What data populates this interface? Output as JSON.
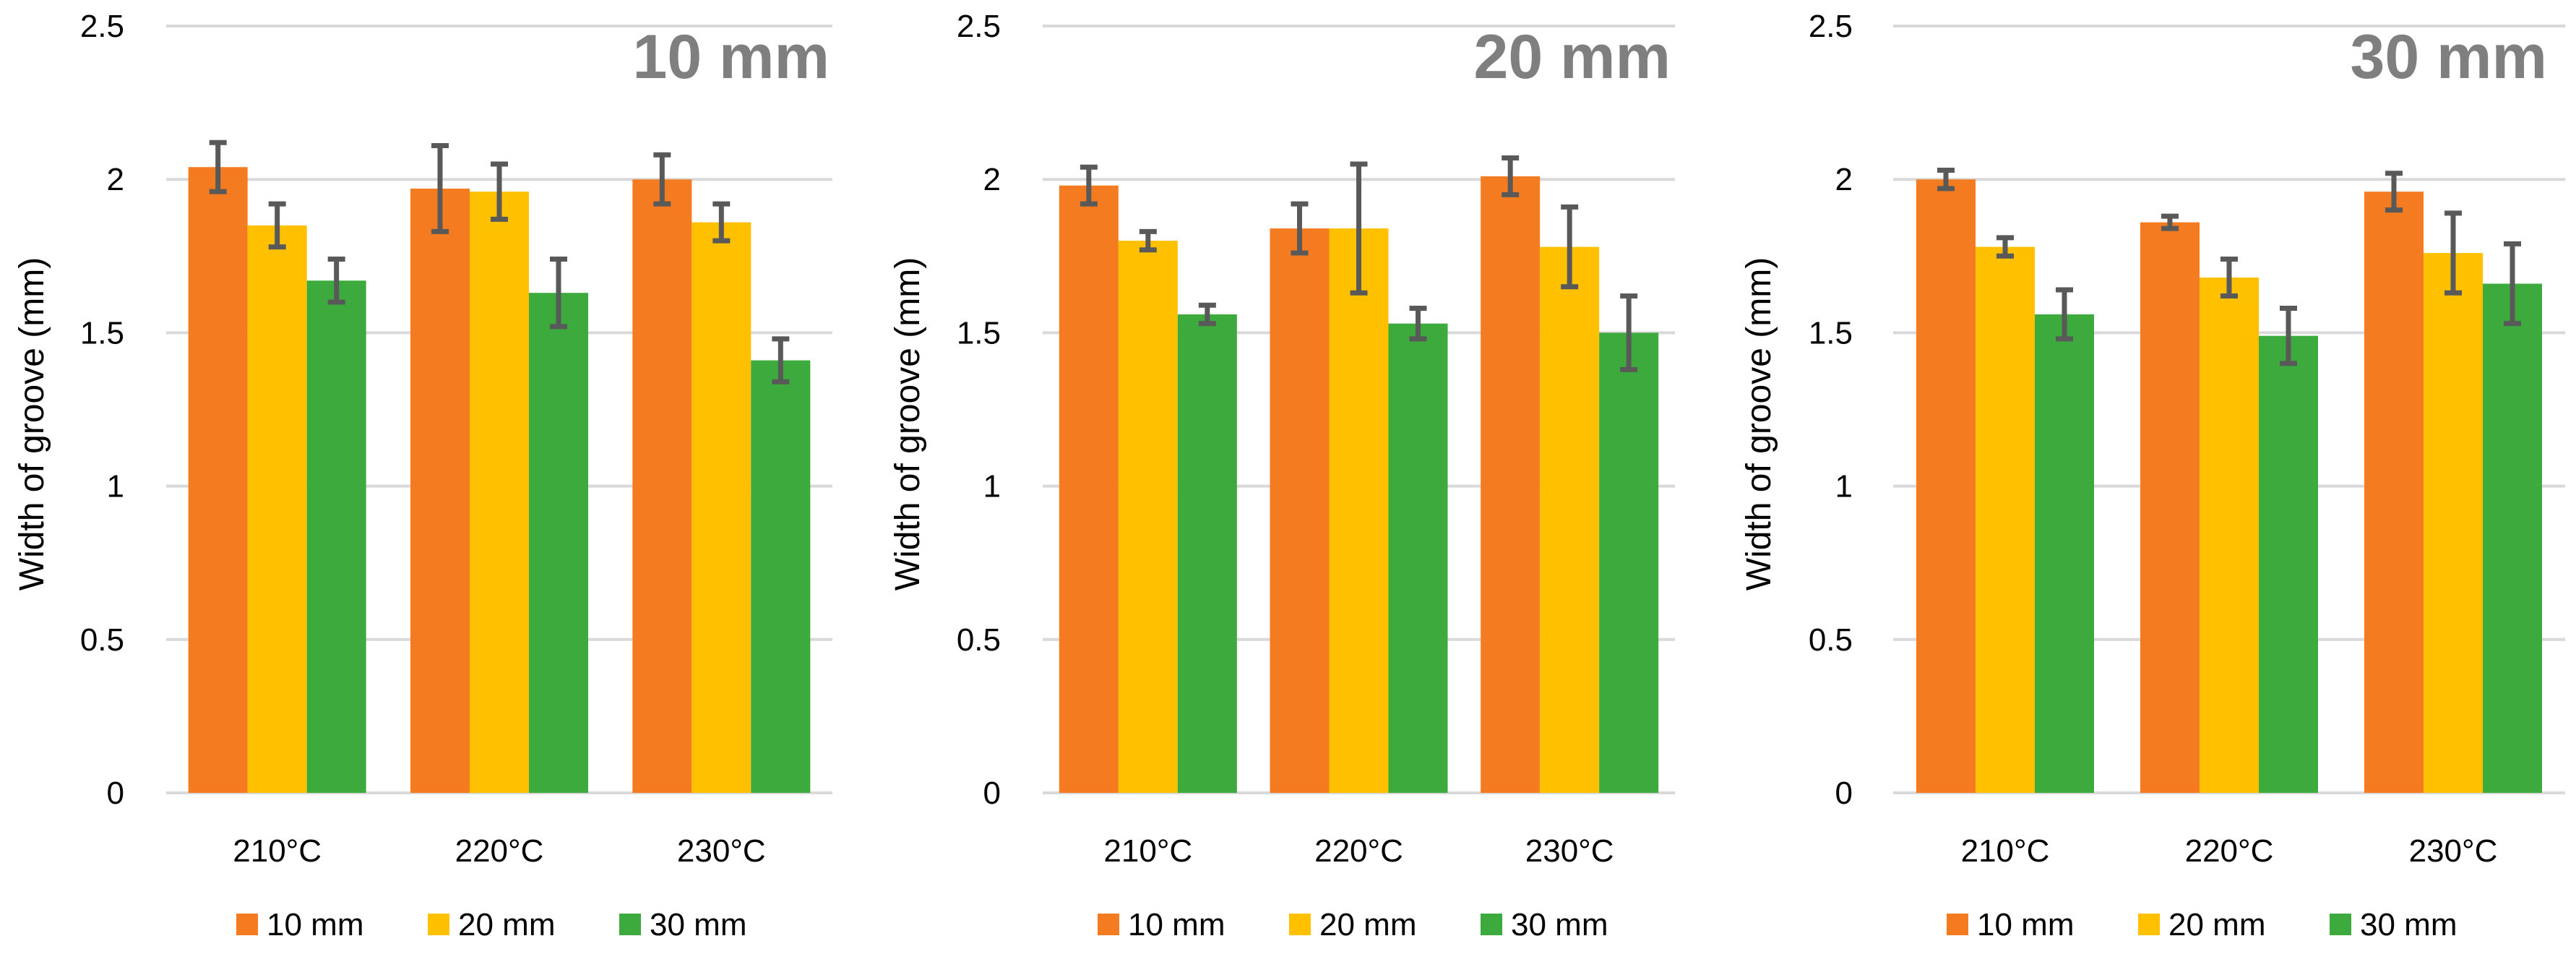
{
  "chart_data": [
    {
      "type": "bar",
      "title": "10 mm",
      "ylabel": "Width of groove (mm)",
      "xlabel": "",
      "ylim": [
        0,
        2.5
      ],
      "yticks": [
        "0",
        "0.5",
        "1",
        "1.5",
        "2",
        "2.5"
      ],
      "ytick_values": [
        0,
        0.5,
        1,
        1.5,
        2,
        2.5
      ],
      "categories": [
        "210°C",
        "220°C",
        "230°C"
      ],
      "series": [
        {
          "name": "10 mm",
          "color": "#F47B20",
          "values": [
            2.04,
            1.97,
            2.0
          ],
          "errors": [
            0.08,
            0.14,
            0.08
          ]
        },
        {
          "name": "20 mm",
          "color": "#FFC000",
          "values": [
            1.85,
            1.96,
            1.86
          ],
          "errors": [
            0.07,
            0.09,
            0.06
          ]
        },
        {
          "name": "30 mm",
          "color": "#3DAA3D",
          "values": [
            1.67,
            1.63,
            1.41
          ],
          "errors": [
            0.07,
            0.11,
            0.07
          ]
        }
      ],
      "legend_position": "bottom"
    },
    {
      "type": "bar",
      "title": "20 mm",
      "ylabel": "Width of groove (mm)",
      "xlabel": "",
      "ylim": [
        0,
        2.5
      ],
      "yticks": [
        "0",
        "0.5",
        "1",
        "1.5",
        "2",
        "2.5"
      ],
      "ytick_values": [
        0,
        0.5,
        1,
        1.5,
        2,
        2.5
      ],
      "categories": [
        "210°C",
        "220°C",
        "230°C"
      ],
      "series": [
        {
          "name": "10 mm",
          "color": "#F47B20",
          "values": [
            1.98,
            1.84,
            2.01
          ],
          "errors": [
            0.06,
            0.08,
            0.06
          ]
        },
        {
          "name": "20 mm",
          "color": "#FFC000",
          "values": [
            1.8,
            1.84,
            1.78
          ],
          "errors": [
            0.03,
            0.21,
            0.13
          ]
        },
        {
          "name": "30 mm",
          "color": "#3DAA3D",
          "values": [
            1.56,
            1.53,
            1.5
          ],
          "errors": [
            0.03,
            0.05,
            0.12
          ]
        }
      ],
      "legend_position": "bottom"
    },
    {
      "type": "bar",
      "title": "30 mm",
      "ylabel": "Width of groove (mm)",
      "xlabel": "",
      "ylim": [
        0,
        2.5
      ],
      "yticks": [
        "0",
        "0.5",
        "1",
        "1.5",
        "2",
        "2.5"
      ],
      "ytick_values": [
        0,
        0.5,
        1,
        1.5,
        2,
        2.5
      ],
      "categories": [
        "210°C",
        "220°C",
        "230°C"
      ],
      "series": [
        {
          "name": "10 mm",
          "color": "#F47B20",
          "values": [
            2.0,
            1.86,
            1.96
          ],
          "errors": [
            0.03,
            0.02,
            0.06
          ]
        },
        {
          "name": "20 mm",
          "color": "#FFC000",
          "values": [
            1.78,
            1.68,
            1.76
          ],
          "errors": [
            0.03,
            0.06,
            0.13
          ]
        },
        {
          "name": "30 mm",
          "color": "#3DAA3D",
          "values": [
            1.56,
            1.49,
            1.66
          ],
          "errors": [
            0.08,
            0.09,
            0.13
          ]
        }
      ],
      "legend_position": "bottom"
    }
  ]
}
